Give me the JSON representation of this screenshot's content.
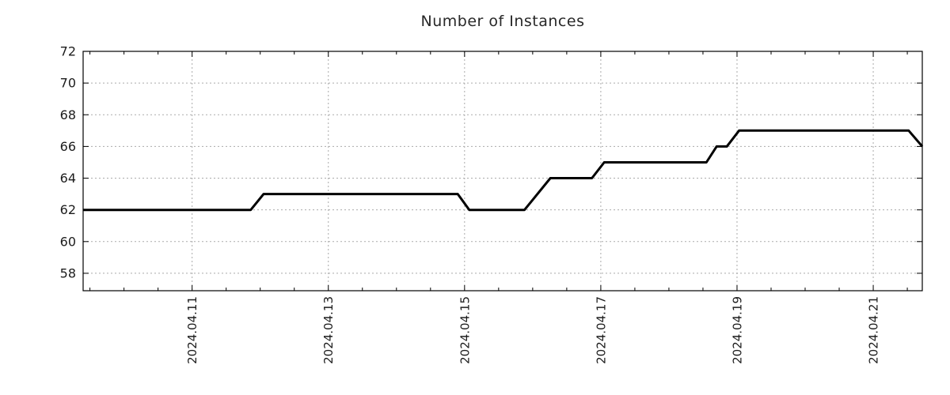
{
  "page": {
    "background": "#ffffff"
  },
  "header": {
    "title": "Number of Instances"
  },
  "colors": {
    "line": "#000000",
    "frame": "#000000",
    "grid": "#aaaaaa",
    "tick": "#000000",
    "tick_text": "#1c1c1c",
    "title_text": "#282828",
    "background": "#ffffff"
  },
  "chart_data": {
    "type": "line",
    "title": "Number of Instances",
    "xlabel": "",
    "ylabel": "",
    "legend": {
      "show": false
    },
    "grid": {
      "show": true,
      "style": "dotted",
      "color": "#aaaaaa"
    },
    "x_axis": {
      "unit": "date (day of April 2024, fractional)",
      "range_days": [
        9.4,
        21.72
      ],
      "major_tick_days": [
        11,
        13,
        15,
        17,
        19,
        21
      ],
      "major_tick_labels": [
        "2024.04.11",
        "2024.04.13",
        "2024.04.15",
        "2024.04.17",
        "2024.04.19",
        "2024.04.21"
      ],
      "minor_tick_step_days": 0.5,
      "label_rotation_deg": 90
    },
    "y_axis": {
      "range": [
        56.9,
        72
      ],
      "ticks": [
        58,
        60,
        62,
        64,
        66,
        68,
        70,
        72
      ]
    },
    "series": [
      {
        "name": "instances",
        "color": "#000000",
        "stroke_width": 3,
        "points_day_value": [
          [
            9.4,
            62
          ],
          [
            11.86,
            62
          ],
          [
            12.05,
            63
          ],
          [
            14.9,
            63
          ],
          [
            15.07,
            62
          ],
          [
            15.88,
            62
          ],
          [
            16.26,
            64
          ],
          [
            16.87,
            64
          ],
          [
            17.05,
            65
          ],
          [
            18.55,
            65
          ],
          [
            18.7,
            66
          ],
          [
            18.85,
            66
          ],
          [
            19.03,
            67
          ],
          [
            21.52,
            67
          ],
          [
            21.72,
            66
          ]
        ]
      }
    ]
  }
}
